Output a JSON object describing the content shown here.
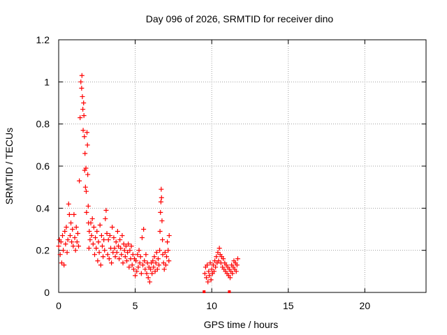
{
  "chart_data": {
    "type": "scatter",
    "title": "Day 096 of 2026, SRMTID for receiver dino",
    "xlabel": "GPS time / hours",
    "ylabel": "SRMTID / TECUs",
    "xlim": [
      0,
      24
    ],
    "ylim": [
      0,
      1.2
    ],
    "x_ticks": [
      0,
      5,
      10,
      15,
      20
    ],
    "x_tick_labels": [
      "0",
      "5",
      "10",
      "15",
      "20"
    ],
    "y_ticks": [
      0,
      0.2,
      0.4,
      0.6,
      0.8,
      1.0,
      1.2
    ],
    "y_tick_labels": [
      "0",
      "0.2",
      "0.4",
      "0.6",
      "0.8",
      "1",
      "1.2"
    ],
    "grid": true,
    "marker": "plus",
    "color": "#ff0000",
    "series": [
      {
        "name": "SRMTID",
        "points": [
          [
            0.0,
            0.22
          ],
          [
            0.05,
            0.25
          ],
          [
            0.1,
            0.18
          ],
          [
            0.15,
            0.24
          ],
          [
            0.2,
            0.14
          ],
          [
            0.25,
            0.27
          ],
          [
            0.3,
            0.2
          ],
          [
            0.35,
            0.13
          ],
          [
            0.4,
            0.29
          ],
          [
            0.45,
            0.23
          ],
          [
            0.5,
            0.31
          ],
          [
            0.55,
            0.19
          ],
          [
            0.6,
            0.25
          ],
          [
            0.65,
            0.42
          ],
          [
            0.7,
            0.37
          ],
          [
            0.75,
            0.27
          ],
          [
            0.8,
            0.33
          ],
          [
            0.85,
            0.24
          ],
          [
            0.9,
            0.3
          ],
          [
            0.95,
            0.22
          ],
          [
            1.0,
            0.37
          ],
          [
            1.05,
            0.26
          ],
          [
            1.1,
            0.2
          ],
          [
            1.15,
            0.31
          ],
          [
            1.2,
            0.24
          ],
          [
            1.25,
            0.28
          ],
          [
            1.3,
            0.22
          ],
          [
            1.35,
            0.53
          ],
          [
            1.4,
            0.83
          ],
          [
            1.45,
            1.0
          ],
          [
            1.5,
            0.97
          ],
          [
            1.52,
            1.03
          ],
          [
            1.55,
            0.93
          ],
          [
            1.58,
            0.87
          ],
          [
            1.6,
            0.77
          ],
          [
            1.63,
            0.9
          ],
          [
            1.65,
            0.84
          ],
          [
            1.68,
            0.74
          ],
          [
            1.7,
            0.58
          ],
          [
            1.72,
            0.66
          ],
          [
            1.75,
            0.5
          ],
          [
            1.78,
            0.59
          ],
          [
            1.8,
            0.48
          ],
          [
            1.82,
            0.38
          ],
          [
            1.85,
            0.76
          ],
          [
            1.88,
            0.7
          ],
          [
            1.9,
            0.56
          ],
          [
            1.93,
            0.41
          ],
          [
            1.95,
            0.33
          ],
          [
            1.98,
            0.21
          ],
          [
            2.0,
            0.29
          ],
          [
            2.05,
            0.25
          ],
          [
            2.1,
            0.33
          ],
          [
            2.15,
            0.27
          ],
          [
            2.2,
            0.35
          ],
          [
            2.25,
            0.23
          ],
          [
            2.3,
            0.31
          ],
          [
            2.35,
            0.18
          ],
          [
            2.4,
            0.26
          ],
          [
            2.45,
            0.21
          ],
          [
            2.5,
            0.29
          ],
          [
            2.55,
            0.15
          ],
          [
            2.6,
            0.24
          ],
          [
            2.65,
            0.19
          ],
          [
            2.7,
            0.32
          ],
          [
            2.75,
            0.13
          ],
          [
            2.8,
            0.27
          ],
          [
            2.85,
            0.22
          ],
          [
            2.9,
            0.17
          ],
          [
            2.95,
            0.25
          ],
          [
            3.0,
            0.2
          ],
          [
            3.05,
            0.35
          ],
          [
            3.1,
            0.39
          ],
          [
            3.15,
            0.28
          ],
          [
            3.2,
            0.18
          ],
          [
            3.25,
            0.25
          ],
          [
            3.3,
            0.16
          ],
          [
            3.35,
            0.27
          ],
          [
            3.4,
            0.21
          ],
          [
            3.45,
            0.14
          ],
          [
            3.5,
            0.31
          ],
          [
            3.55,
            0.19
          ],
          [
            3.6,
            0.26
          ],
          [
            3.65,
            0.21
          ],
          [
            3.7,
            0.17
          ],
          [
            3.75,
            0.24
          ],
          [
            3.8,
            0.19
          ],
          [
            3.85,
            0.29
          ],
          [
            3.9,
            0.22
          ],
          [
            3.95,
            0.16
          ],
          [
            4.0,
            0.25
          ],
          [
            4.05,
            0.21
          ],
          [
            4.1,
            0.18
          ],
          [
            4.15,
            0.27
          ],
          [
            4.2,
            0.14
          ],
          [
            4.25,
            0.23
          ],
          [
            4.3,
            0.2
          ],
          [
            4.35,
            0.17
          ],
          [
            4.4,
            0.22
          ],
          [
            4.45,
            0.15
          ],
          [
            4.5,
            0.19
          ],
          [
            4.55,
            0.23
          ],
          [
            4.6,
            0.12
          ],
          [
            4.65,
            0.2
          ],
          [
            4.7,
            0.16
          ],
          [
            4.75,
            0.22
          ],
          [
            4.8,
            0.13
          ],
          [
            4.85,
            0.18
          ],
          [
            4.9,
            0.11
          ],
          [
            4.95,
            0.16
          ],
          [
            5.0,
            0.08
          ],
          [
            5.05,
            0.15
          ],
          [
            5.1,
            0.1
          ],
          [
            5.15,
            0.18
          ],
          [
            5.2,
            0.12
          ],
          [
            5.25,
            0.2
          ],
          [
            5.3,
            0.14
          ],
          [
            5.35,
            0.17
          ],
          [
            5.4,
            0.09
          ],
          [
            5.45,
            0.26
          ],
          [
            5.5,
            0.13
          ],
          [
            5.55,
            0.3
          ],
          [
            5.6,
            0.15
          ],
          [
            5.65,
            0.11
          ],
          [
            5.7,
            0.18
          ],
          [
            5.75,
            0.09
          ],
          [
            5.8,
            0.14
          ],
          [
            5.85,
            0.07
          ],
          [
            5.9,
            0.12
          ],
          [
            5.95,
            0.05
          ],
          [
            6.0,
            0.11
          ],
          [
            6.05,
            0.14
          ],
          [
            6.1,
            0.09
          ],
          [
            6.15,
            0.15
          ],
          [
            6.2,
            0.12
          ],
          [
            6.25,
            0.17
          ],
          [
            6.3,
            0.1
          ],
          [
            6.35,
            0.14
          ],
          [
            6.4,
            0.19
          ],
          [
            6.45,
            0.11
          ],
          [
            6.5,
            0.16
          ],
          [
            6.55,
            0.13
          ],
          [
            6.6,
            0.2
          ],
          [
            6.62,
            0.29
          ],
          [
            6.65,
            0.38
          ],
          [
            6.68,
            0.43
          ],
          [
            6.7,
            0.49
          ],
          [
            6.72,
            0.45
          ],
          [
            6.75,
            0.34
          ],
          [
            6.78,
            0.25
          ],
          [
            6.8,
            0.18
          ],
          [
            6.85,
            0.14
          ],
          [
            6.9,
            0.11
          ],
          [
            6.95,
            0.19
          ],
          [
            7.0,
            0.13
          ],
          [
            7.05,
            0.17
          ],
          [
            7.1,
            0.24
          ],
          [
            7.15,
            0.2
          ],
          [
            7.2,
            0.15
          ],
          [
            7.22,
            0.27
          ],
          [
            9.55,
            0.09
          ],
          [
            9.6,
            0.12
          ],
          [
            9.65,
            0.07
          ],
          [
            9.7,
            0.13
          ],
          [
            9.75,
            0.05
          ],
          [
            9.8,
            0.1
          ],
          [
            9.85,
            0.08
          ],
          [
            9.9,
            0.14
          ],
          [
            9.95,
            0.06
          ],
          [
            10.0,
            0.11
          ],
          [
            10.05,
            0.09
          ],
          [
            10.1,
            0.13
          ],
          [
            10.15,
            0.1
          ],
          [
            10.2,
            0.15
          ],
          [
            10.25,
            0.12
          ],
          [
            10.3,
            0.17
          ],
          [
            10.35,
            0.14
          ],
          [
            10.4,
            0.19
          ],
          [
            10.45,
            0.15
          ],
          [
            10.5,
            0.21
          ],
          [
            10.55,
            0.18
          ],
          [
            10.6,
            0.14
          ],
          [
            10.65,
            0.17
          ],
          [
            10.7,
            0.12
          ],
          [
            10.75,
            0.16
          ],
          [
            10.8,
            0.11
          ],
          [
            10.85,
            0.14
          ],
          [
            10.9,
            0.1
          ],
          [
            10.95,
            0.13
          ],
          [
            11.0,
            0.09
          ],
          [
            11.05,
            0.12
          ],
          [
            11.1,
            0.08
          ],
          [
            11.15,
            0.11
          ],
          [
            11.2,
            0.07
          ],
          [
            11.25,
            0.1
          ],
          [
            11.3,
            0.13
          ],
          [
            11.35,
            0.09
          ],
          [
            11.4,
            0.12
          ],
          [
            11.45,
            0.15
          ],
          [
            11.5,
            0.11
          ],
          [
            11.55,
            0.14
          ],
          [
            11.6,
            0.1
          ],
          [
            11.65,
            0.13
          ],
          [
            11.7,
            0.16
          ]
        ],
        "bottom_markers": [
          9.5,
          11.15
        ]
      }
    ]
  }
}
